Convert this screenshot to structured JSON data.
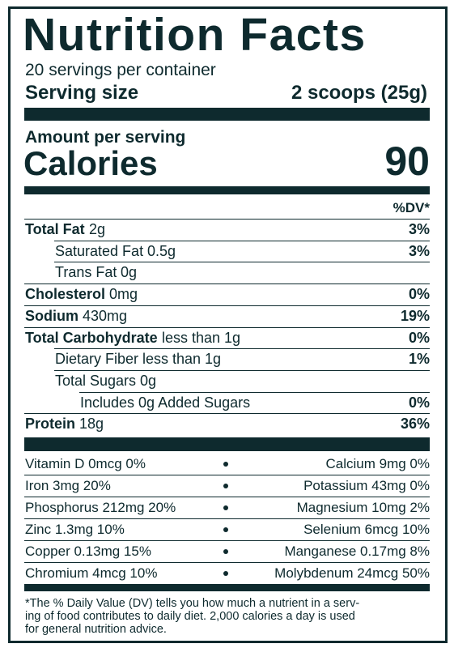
{
  "header": {
    "title": "Nutrition Facts",
    "servings": "20 servings per container",
    "serving_size_label": "Serving size",
    "serving_size_value": "2 scoops (25g)"
  },
  "calories": {
    "amount_label": "Amount per serving",
    "label": "Calories",
    "value": "90"
  },
  "dv_header": "%DV*",
  "nutrients": [
    {
      "name": "Total Fat",
      "amount": "2g",
      "dv": "3%",
      "bold": true,
      "indent": 0
    },
    {
      "name": "Saturated Fat",
      "amount": "0.5g",
      "dv": "3%",
      "bold": false,
      "indent": 1
    },
    {
      "name": "Trans Fat",
      "amount": "0g",
      "bold": false,
      "indent": 1
    },
    {
      "name": "Cholesterol",
      "amount": "0mg",
      "dv": "0%",
      "bold": true,
      "indent": 0
    },
    {
      "name": "Sodium",
      "amount": "430mg",
      "dv": "19%",
      "bold": true,
      "indent": 0
    },
    {
      "name": "Total Carbohydrate",
      "amount": "less than 1g",
      "dv": "0%",
      "bold": true,
      "indent": 0
    },
    {
      "name": "Dietary Fiber",
      "amount": "less than 1g",
      "dv": "1%",
      "bold": false,
      "indent": 1
    },
    {
      "name": "Total Sugars",
      "amount": "0g",
      "bold": false,
      "indent": 1
    },
    {
      "name": "Includes 0g Added Sugars",
      "dv": "0%",
      "bold": false,
      "indent": 2
    },
    {
      "name": "Protein",
      "amount": "18g",
      "dv": "36%",
      "bold": true,
      "indent": 0
    }
  ],
  "vitamins": [
    {
      "left": "Vitamin D 0mcg 0%",
      "right": "Calcium 9mg 0%"
    },
    {
      "left": "Iron 3mg 20%",
      "right": "Potassium 43mg 0%"
    },
    {
      "left": "Phosphorus 212mg 20%",
      "right": "Magnesium 10mg 2%"
    },
    {
      "left": "Zinc 1.3mg 10%",
      "right": "Selenium 6mcg 10%"
    },
    {
      "left": "Copper 0.13mg 15%",
      "right": "Manganese 0.17mg 8%"
    },
    {
      "left": "Chromium 4mcg 10%",
      "right": "Molybdenum 24mcg 50%"
    }
  ],
  "footnote": [
    "*The % Daily Value (DV) tells you how much a nutrient in a serv-",
    "ing of food contributes to daily diet. 2,000 calories a day is used",
    "for general nutrition advice."
  ]
}
